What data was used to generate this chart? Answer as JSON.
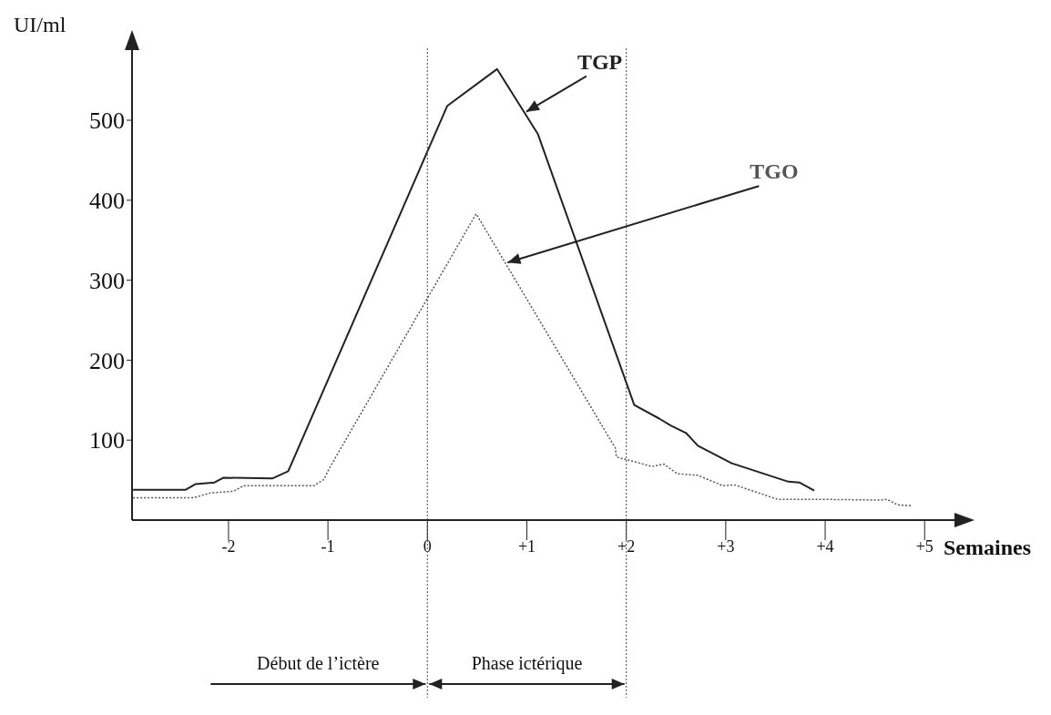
{
  "chart_data": {
    "type": "line",
    "xlabel": "Semaines",
    "ylabel": "UI/ml",
    "xlim": [
      -2.97,
      5.3
    ],
    "xticks": [
      -2,
      -1,
      0,
      {
        "value": 1,
        "label": "+1"
      },
      {
        "value": 2,
        "label": "+2"
      },
      {
        "value": 3,
        "label": "+3"
      },
      {
        "value": 4,
        "label": "+4"
      },
      {
        "value": 5,
        "label": "+5"
      }
    ],
    "ylim": [
      0,
      590
    ],
    "yticks": [
      100,
      200,
      300,
      400,
      500
    ],
    "marker": "none",
    "series": [
      {
        "name": "TGP",
        "color": "#222222",
        "line_style": "solid",
        "x": [
          -2.96,
          -2.43,
          -2.33,
          -2.14,
          -2.05,
          -1.56,
          -1.4,
          0.2,
          0.7,
          1.11,
          2.08,
          2.33,
          2.45,
          2.6,
          2.72,
          3.06,
          3.63,
          3.74,
          3.89
        ],
        "values": [
          38,
          38,
          45,
          47,
          53,
          52,
          61,
          518,
          564,
          483,
          144,
          127,
          118,
          109,
          93,
          71,
          48,
          47,
          37
        ]
      },
      {
        "name": "TGO",
        "color": "#555555",
        "line_style": "dotted",
        "x": [
          -2.96,
          -2.35,
          -2.18,
          -1.95,
          -1.85,
          -1.14,
          -1.04,
          -0.99,
          0.49,
          1.89,
          1.9,
          2.26,
          2.38,
          2.51,
          2.72,
          2.97,
          3.09,
          3.52,
          3.94,
          4.55,
          4.62,
          4.73,
          4.87
        ],
        "values": [
          28,
          28,
          34,
          36,
          43,
          43,
          51,
          64,
          383,
          90,
          79,
          67,
          70,
          58,
          56,
          43,
          44,
          26,
          26,
          25,
          26,
          19,
          18
        ]
      }
    ],
    "ref_lines": [
      {
        "axis": "x",
        "value": 0,
        "label": null,
        "line_style": "dotted"
      },
      {
        "axis": "x",
        "value": 2,
        "label": null,
        "line_style": "dotted"
      }
    ],
    "annotations": [
      "Début de l’ictère",
      "Phase ictérique"
    ]
  }
}
